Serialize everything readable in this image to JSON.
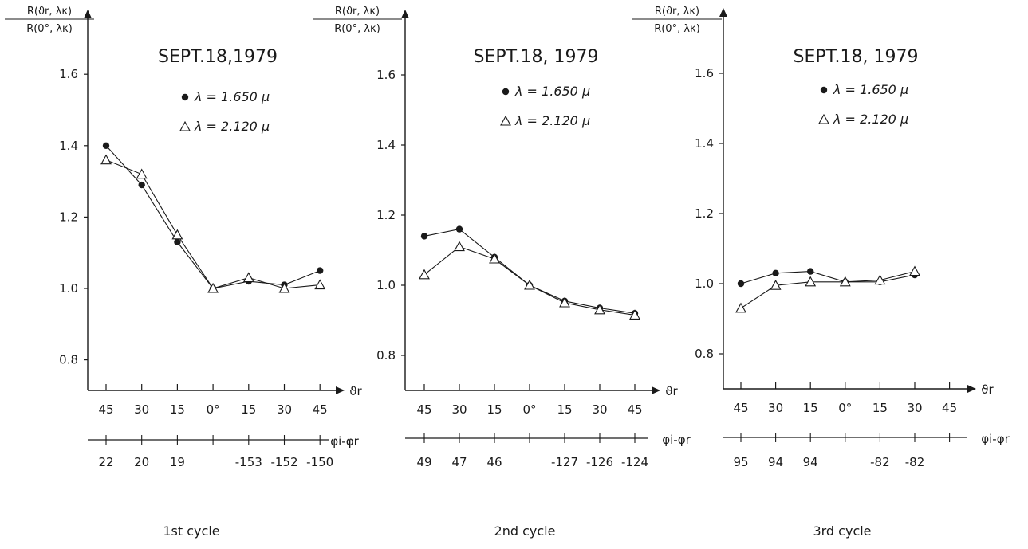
{
  "figure": {
    "background": "#ffffff",
    "ink": "#1a1a1a"
  },
  "chart_data": [
    {
      "type": "line",
      "title": "SEPT.18,1979",
      "ylabel_numerator": "R(ϑr, λκ)",
      "ylabel_denominator": "R(0°, λκ)",
      "xlabel": "ϑr",
      "secondary_xlabel": "φi-φr",
      "caption": "1st cycle",
      "categories": [
        "45",
        "30",
        "15",
        "0°",
        "15",
        "30",
        "45"
      ],
      "secondary_ticks": [
        "22",
        "20",
        "19",
        "",
        "-153",
        "-152",
        "-150"
      ],
      "yticks": [
        "0.8",
        "1.0",
        "1.2",
        "1.4",
        "1.6"
      ],
      "ylim": [
        0.7,
        1.72
      ],
      "series": [
        {
          "name": "λ = 1.650 μ",
          "marker": "filled-circle",
          "values": [
            1.4,
            1.29,
            1.13,
            1.0,
            1.02,
            1.01,
            1.05
          ]
        },
        {
          "name": "λ = 2.120 μ",
          "marker": "open-triangle",
          "values": [
            1.36,
            1.32,
            1.15,
            1.0,
            1.03,
            1.0,
            1.01
          ]
        }
      ]
    },
    {
      "type": "line",
      "title": "SEPT.18, 1979",
      "ylabel_numerator": "R(ϑr, λκ)",
      "ylabel_denominator": "R(0°, λκ)",
      "xlabel": "ϑr",
      "secondary_xlabel": "φi-φr",
      "caption": "2nd cycle",
      "categories": [
        "45",
        "30",
        "15",
        "0°",
        "15",
        "30",
        "45"
      ],
      "secondary_ticks": [
        "49",
        "47",
        "46",
        "",
        "-127",
        "-126",
        "-124"
      ],
      "yticks": [
        "0.8",
        "1.0",
        "1.2",
        "1.4",
        "1.6"
      ],
      "ylim": [
        0.7,
        1.72
      ],
      "series": [
        {
          "name": "λ = 1.650 μ",
          "marker": "filled-circle",
          "values": [
            1.14,
            1.16,
            1.08,
            1.0,
            0.955,
            0.935,
            0.92
          ]
        },
        {
          "name": "λ = 2.120 μ",
          "marker": "open-triangle",
          "values": [
            1.03,
            1.11,
            1.075,
            1.0,
            0.95,
            0.93,
            0.915
          ]
        }
      ]
    },
    {
      "type": "line",
      "title": "SEPT.18, 1979",
      "ylabel_numerator": "R(ϑr, λκ)",
      "ylabel_denominator": "R(0°, λκ)",
      "xlabel": "ϑr",
      "secondary_xlabel": "φi-φr",
      "caption": "3rd cycle",
      "categories": [
        "45",
        "30",
        "15",
        "0°",
        "15",
        "30",
        "45"
      ],
      "secondary_ticks": [
        "95",
        "94",
        "94",
        "",
        "-82",
        "-82",
        ""
      ],
      "yticks": [
        "0.8",
        "1.0",
        "1.2",
        "1.4",
        "1.6"
      ],
      "ylim": [
        0.7,
        1.72
      ],
      "series": [
        {
          "name": "λ = 1.650 μ",
          "marker": "filled-circle",
          "values": [
            1.0,
            1.03,
            1.035,
            1.005,
            1.005,
            1.025,
            null
          ]
        },
        {
          "name": "λ = 2.120 μ",
          "marker": "open-triangle",
          "values": [
            0.93,
            0.995,
            1.005,
            1.005,
            1.01,
            1.035,
            null
          ]
        }
      ]
    }
  ]
}
